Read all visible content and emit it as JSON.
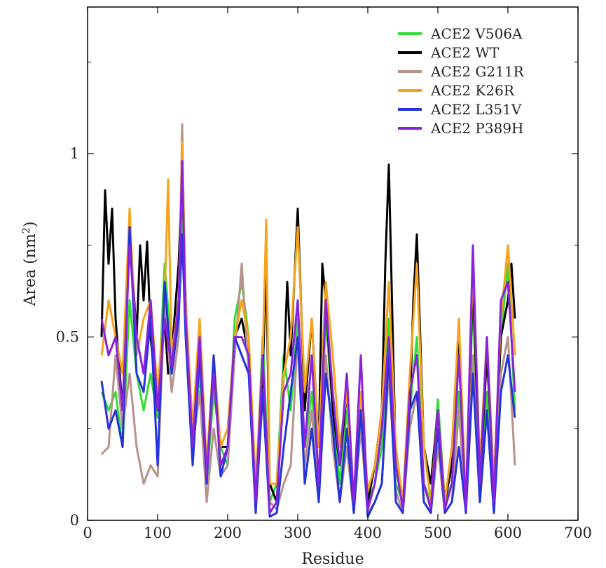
{
  "chart_data": {
    "type": "line",
    "title": "",
    "xlabel": "Residue",
    "ylabel": "Area (nm",
    "ylabel_superscript": "2",
    "ylabel_close": ")",
    "xlim": [
      0,
      700
    ],
    "ylim": [
      0,
      1.4
    ],
    "xticks": [
      0,
      100,
      200,
      300,
      400,
      500,
      600,
      700
    ],
    "yticks": [
      0,
      0.5,
      1
    ],
    "grid": false,
    "legend_position": "top-right",
    "series": [
      {
        "name": "ACE2 V506A",
        "color": "#33dd33",
        "x": [
          20,
          30,
          40,
          50,
          60,
          70,
          80,
          90,
          100,
          110,
          120,
          130,
          135,
          140,
          150,
          160,
          170,
          180,
          190,
          200,
          210,
          220,
          230,
          240,
          250,
          260,
          270,
          280,
          290,
          300,
          310,
          320,
          330,
          340,
          350,
          360,
          370,
          380,
          390,
          400,
          410,
          420,
          430,
          440,
          450,
          460,
          470,
          480,
          490,
          500,
          510,
          520,
          530,
          540,
          550,
          560,
          570,
          580,
          590,
          600,
          610
        ],
        "y": [
          0.35,
          0.3,
          0.35,
          0.2,
          0.6,
          0.4,
          0.3,
          0.4,
          0.28,
          0.7,
          0.45,
          0.6,
          0.85,
          0.55,
          0.2,
          0.4,
          0.1,
          0.35,
          0.2,
          0.15,
          0.55,
          0.65,
          0.5,
          0.05,
          0.5,
          0.05,
          0.1,
          0.45,
          0.3,
          0.55,
          0.2,
          0.35,
          0.1,
          0.55,
          0.3,
          0.1,
          0.3,
          0.05,
          0.3,
          0.05,
          0.1,
          0.2,
          0.55,
          0.1,
          0.05,
          0.3,
          0.5,
          0.1,
          0.05,
          0.33,
          0.05,
          0.1,
          0.35,
          0.05,
          0.6,
          0.1,
          0.35,
          0.05,
          0.5,
          0.7,
          0.3
        ]
      },
      {
        "name": "ACE2 WT",
        "color": "#000000",
        "x": [
          20,
          25,
          30,
          35,
          40,
          50,
          60,
          70,
          75,
          80,
          85,
          90,
          100,
          110,
          115,
          120,
          130,
          135,
          140,
          150,
          160,
          170,
          180,
          190,
          200,
          210,
          220,
          230,
          240,
          250,
          255,
          260,
          270,
          280,
          285,
          290,
          300,
          310,
          320,
          330,
          335,
          340,
          350,
          360,
          370,
          380,
          390,
          400,
          410,
          420,
          425,
          430,
          440,
          450,
          460,
          465,
          470,
          480,
          490,
          500,
          510,
          520,
          530,
          540,
          550,
          560,
          570,
          580,
          590,
          600,
          605,
          610
        ],
        "y": [
          0.5,
          0.9,
          0.7,
          0.85,
          0.55,
          0.3,
          0.8,
          0.5,
          0.75,
          0.6,
          0.76,
          0.5,
          0.3,
          0.55,
          0.4,
          0.45,
          0.7,
          0.95,
          0.6,
          0.2,
          0.45,
          0.15,
          0.4,
          0.2,
          0.2,
          0.5,
          0.55,
          0.45,
          0.05,
          0.4,
          0.7,
          0.1,
          0.05,
          0.4,
          0.65,
          0.45,
          0.85,
          0.3,
          0.55,
          0.2,
          0.7,
          0.6,
          0.3,
          0.15,
          0.35,
          0.05,
          0.35,
          0.05,
          0.15,
          0.3,
          0.7,
          0.97,
          0.15,
          0.05,
          0.3,
          0.6,
          0.78,
          0.2,
          0.1,
          0.3,
          0.05,
          0.15,
          0.5,
          0.05,
          0.65,
          0.1,
          0.45,
          0.1,
          0.5,
          0.6,
          0.7,
          0.55
        ]
      },
      {
        "name": "ACE2 G211R",
        "color": "#b8918a",
        "x": [
          20,
          30,
          40,
          50,
          60,
          70,
          80,
          90,
          100,
          110,
          120,
          130,
          135,
          140,
          150,
          160,
          170,
          180,
          190,
          200,
          210,
          220,
          230,
          240,
          250,
          260,
          270,
          280,
          290,
          300,
          310,
          320,
          330,
          340,
          350,
          360,
          370,
          380,
          390,
          400,
          410,
          420,
          430,
          440,
          450,
          460,
          470,
          480,
          490,
          500,
          510,
          520,
          530,
          540,
          550,
          560,
          570,
          580,
          590,
          600,
          610
        ],
        "y": [
          0.18,
          0.2,
          0.45,
          0.25,
          0.4,
          0.2,
          0.1,
          0.15,
          0.12,
          0.6,
          0.35,
          0.5,
          1.08,
          0.55,
          0.2,
          0.35,
          0.05,
          0.25,
          0.12,
          0.15,
          0.45,
          0.7,
          0.4,
          0.05,
          0.35,
          0.05,
          0.03,
          0.1,
          0.15,
          0.5,
          0.15,
          0.3,
          0.05,
          0.45,
          0.2,
          0.05,
          0.2,
          0.02,
          0.25,
          0.02,
          0.05,
          0.1,
          0.4,
          0.08,
          0.02,
          0.25,
          0.35,
          0.05,
          0.02,
          0.2,
          0.02,
          0.05,
          0.3,
          0.02,
          0.45,
          0.05,
          0.3,
          0.02,
          0.4,
          0.5,
          0.15
        ]
      },
      {
        "name": "ACE2 K26R",
        "color": "#f5a31a",
        "x": [
          20,
          30,
          40,
          50,
          60,
          70,
          80,
          90,
          100,
          110,
          115,
          120,
          130,
          135,
          140,
          150,
          160,
          170,
          180,
          190,
          200,
          210,
          220,
          230,
          240,
          250,
          255,
          260,
          270,
          280,
          290,
          300,
          310,
          320,
          330,
          340,
          350,
          360,
          370,
          380,
          390,
          400,
          410,
          420,
          430,
          440,
          450,
          460,
          470,
          480,
          490,
          500,
          510,
          520,
          530,
          540,
          550,
          560,
          570,
          580,
          590,
          600,
          610
        ],
        "y": [
          0.45,
          0.6,
          0.5,
          0.4,
          0.85,
          0.45,
          0.55,
          0.6,
          0.35,
          0.6,
          0.93,
          0.45,
          0.6,
          1.03,
          0.6,
          0.25,
          0.55,
          0.15,
          0.45,
          0.2,
          0.25,
          0.5,
          0.6,
          0.5,
          0.1,
          0.45,
          0.82,
          0.1,
          0.1,
          0.4,
          0.5,
          0.8,
          0.35,
          0.55,
          0.2,
          0.65,
          0.45,
          0.2,
          0.35,
          0.05,
          0.35,
          0.08,
          0.15,
          0.3,
          0.65,
          0.2,
          0.05,
          0.4,
          0.7,
          0.2,
          0.05,
          0.3,
          0.05,
          0.2,
          0.55,
          0.05,
          0.7,
          0.15,
          0.5,
          0.1,
          0.55,
          0.75,
          0.45
        ]
      },
      {
        "name": "ACE2 L351V",
        "color": "#2233dd",
        "x": [
          20,
          30,
          40,
          50,
          60,
          70,
          80,
          90,
          100,
          110,
          120,
          130,
          135,
          140,
          150,
          160,
          170,
          180,
          190,
          200,
          210,
          220,
          230,
          240,
          250,
          260,
          270,
          280,
          290,
          300,
          310,
          320,
          330,
          340,
          350,
          360,
          370,
          380,
          390,
          400,
          410,
          420,
          430,
          440,
          450,
          460,
          470,
          480,
          490,
          500,
          510,
          520,
          530,
          540,
          550,
          560,
          570,
          580,
          590,
          600,
          610
        ],
        "y": [
          0.38,
          0.25,
          0.3,
          0.2,
          0.8,
          0.4,
          0.35,
          0.55,
          0.15,
          0.65,
          0.4,
          0.55,
          0.78,
          0.5,
          0.15,
          0.45,
          0.1,
          0.45,
          0.12,
          0.2,
          0.5,
          0.45,
          0.4,
          0.02,
          0.35,
          0.01,
          0.02,
          0.2,
          0.35,
          0.5,
          0.1,
          0.25,
          0.05,
          0.4,
          0.25,
          0.05,
          0.25,
          0.02,
          0.3,
          0.01,
          0.05,
          0.1,
          0.45,
          0.05,
          0.02,
          0.3,
          0.35,
          0.05,
          0.02,
          0.25,
          0.02,
          0.05,
          0.2,
          0.02,
          0.4,
          0.05,
          0.3,
          0.02,
          0.35,
          0.45,
          0.28
        ]
      },
      {
        "name": "ACE2 P389H",
        "color": "#8822dd",
        "x": [
          20,
          30,
          40,
          50,
          60,
          70,
          80,
          90,
          100,
          110,
          120,
          130,
          135,
          140,
          150,
          160,
          170,
          180,
          190,
          200,
          210,
          220,
          230,
          240,
          250,
          260,
          270,
          280,
          290,
          300,
          310,
          320,
          330,
          340,
          350,
          360,
          370,
          380,
          390,
          400,
          410,
          420,
          430,
          440,
          450,
          460,
          470,
          480,
          490,
          500,
          510,
          520,
          530,
          540,
          550,
          560,
          570,
          580,
          590,
          600,
          610
        ],
        "y": [
          0.55,
          0.45,
          0.5,
          0.3,
          0.75,
          0.5,
          0.4,
          0.6,
          0.3,
          0.55,
          0.42,
          0.6,
          0.98,
          0.55,
          0.2,
          0.5,
          0.12,
          0.4,
          0.15,
          0.2,
          0.5,
          0.5,
          0.45,
          0.05,
          0.45,
          0.02,
          0.05,
          0.35,
          0.4,
          0.6,
          0.2,
          0.45,
          0.1,
          0.6,
          0.35,
          0.15,
          0.4,
          0.05,
          0.45,
          0.03,
          0.1,
          0.25,
          0.5,
          0.15,
          0.03,
          0.35,
          0.45,
          0.1,
          0.03,
          0.3,
          0.03,
          0.1,
          0.45,
          0.03,
          0.75,
          0.1,
          0.5,
          0.05,
          0.6,
          0.65,
          0.35
        ]
      }
    ]
  }
}
